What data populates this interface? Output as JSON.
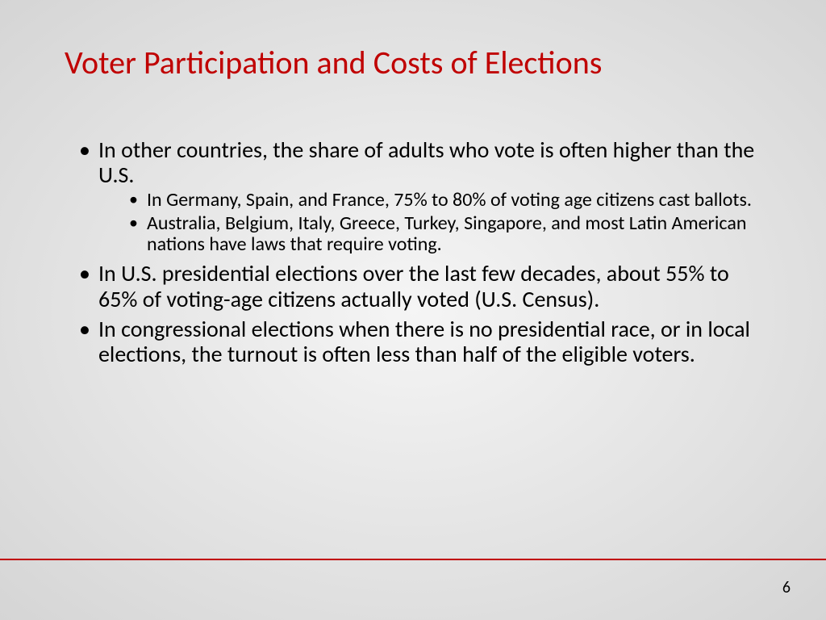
{
  "title": "Voter Participation and Costs of Elections",
  "title_color": "#c00000",
  "body_color": "#000000",
  "background_gradient": {
    "inner": "#f5f5f5",
    "outer": "#d5d5d5"
  },
  "divider_color": "#c00000",
  "font_family": "Calibri",
  "title_fontsize": 40,
  "level1_fontsize": 28,
  "level2_fontsize": 24,
  "bullets": [
    {
      "text": "In other countries, the share of adults who vote is often higher than the U.S.",
      "sub": [
        "In Germany, Spain, and France, 75% to 80% of voting age citizens cast ballots.",
        "Australia, Belgium, Italy, Greece, Turkey, Singapore, and most Latin American nations have laws that require voting."
      ]
    },
    {
      "text": "In U.S. presidential elections over the last few decades, about 55% to 65% of voting-age citizens actually voted (U.S. Census).",
      "sub": []
    },
    {
      "text": "In congressional elections when there is no presidential race, or in local elections, the turnout is often less than half of the eligible voters.",
      "sub": []
    }
  ],
  "page_number": "6"
}
